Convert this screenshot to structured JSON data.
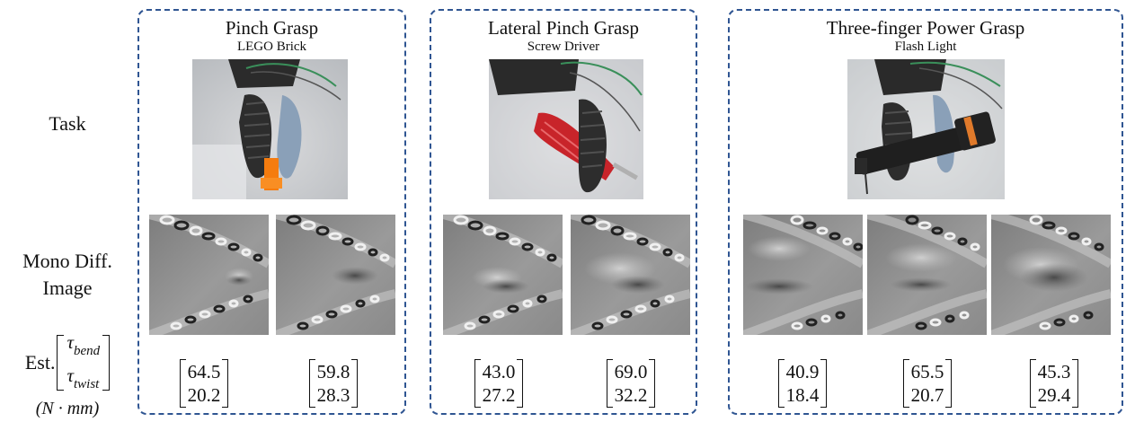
{
  "row_labels": {
    "task": "Task",
    "mono_line1": "Mono Diff.",
    "mono_line2": "Image",
    "est": "Est.",
    "tau_bend_symbol": "τ",
    "tau_bend_sub": "bend",
    "tau_twist_symbol": "τ",
    "tau_twist_sub": "twist",
    "unit": "(N · mm)"
  },
  "panels": [
    {
      "title": "Pinch Grasp",
      "subtitle": "LEGO Brick",
      "estimates": [
        {
          "bend": "64.5",
          "twist": "20.2"
        },
        {
          "bend": "59.8",
          "twist": "28.3"
        }
      ]
    },
    {
      "title": "Lateral Pinch Grasp",
      "subtitle": "Screw Driver",
      "estimates": [
        {
          "bend": "43.0",
          "twist": "27.2"
        },
        {
          "bend": "69.0",
          "twist": "32.2"
        }
      ]
    },
    {
      "title": "Three-finger Power Grasp",
      "subtitle": "Flash Light",
      "estimates": [
        {
          "bend": "40.9",
          "twist": "18.4"
        },
        {
          "bend": "65.5",
          "twist": "20.7"
        },
        {
          "bend": "45.3",
          "twist": "29.4"
        }
      ]
    }
  ],
  "colors": {
    "panel_border": "#2f5592",
    "gripper_finger": "#2d2d2d",
    "lego_brick": "#f57c0f",
    "screwdriver_handle": "#c8242a"
  }
}
